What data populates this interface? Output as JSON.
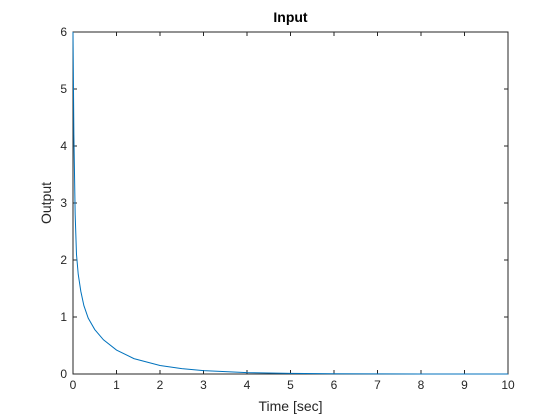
{
  "chart_data": {
    "type": "line",
    "title": "Input",
    "xlabel": "Time [sec]",
    "ylabel": "Output",
    "xlim": [
      0,
      10
    ],
    "ylim": [
      0,
      6
    ],
    "xticks": [
      0,
      1,
      2,
      3,
      4,
      5,
      6,
      7,
      8,
      9,
      10
    ],
    "yticks": [
      0,
      1,
      2,
      3,
      4,
      5,
      6
    ],
    "grid": false,
    "series": [
      {
        "color": "#0072BD",
        "x": [
          0,
          0.02,
          0.05,
          0.08,
          0.12,
          0.18,
          0.25,
          0.35,
          0.5,
          0.7,
          1.0,
          1.4,
          2.0,
          2.5,
          3.0,
          4.0,
          5.0,
          6.0,
          7.0,
          8.0,
          9.0,
          10.0
        ],
        "y": [
          6.0,
          4.2,
          2.8,
          2.1,
          1.75,
          1.45,
          1.2,
          0.98,
          0.78,
          0.6,
          0.42,
          0.27,
          0.15,
          0.095,
          0.06,
          0.025,
          0.01,
          0.004,
          0.002,
          0.001,
          0.0005,
          0.0002
        ]
      }
    ]
  }
}
